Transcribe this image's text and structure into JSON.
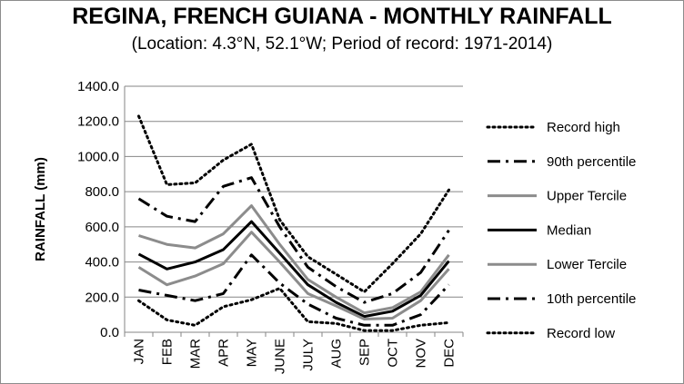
{
  "chart_data": {
    "type": "line",
    "title": "REGINA, FRENCH GUIANA - MONTHLY RAINFALL",
    "subtitle": "(Location: 4.3°N, 52.1°W; Period of record: 1971-2014)",
    "xlabel": "",
    "ylabel": "RAINFALL (mm)",
    "ylim": [
      0,
      1400
    ],
    "yticks": [
      "0.0",
      "200.0",
      "400.0",
      "600.0",
      "800.0",
      "1000.0",
      "1200.0",
      "1400.0"
    ],
    "categories": [
      "JAN",
      "FEB",
      "MAR",
      "APR",
      "MAY",
      "JUNE",
      "JULY",
      "AUG",
      "SEP",
      "OCT",
      "NOV",
      "DEC"
    ],
    "grid": "horizontal",
    "legend_position": "right",
    "series": [
      {
        "name": "Record high",
        "style": "dotted",
        "color": "#000000",
        "values": [
          1230,
          840,
          850,
          980,
          1070,
          640,
          430,
          330,
          230,
          390,
          560,
          810
        ]
      },
      {
        "name": "90th percentile",
        "style": "dashdot",
        "color": "#000000",
        "values": [
          760,
          660,
          630,
          830,
          880,
          600,
          370,
          260,
          170,
          220,
          340,
          580
        ]
      },
      {
        "name": "Upper Tercile",
        "style": "solid",
        "color": "#8c8c8c",
        "values": [
          550,
          500,
          480,
          560,
          720,
          500,
          300,
          200,
          110,
          140,
          230,
          440
        ]
      },
      {
        "name": "Median",
        "style": "solid",
        "color": "#000000",
        "values": [
          445,
          360,
          400,
          470,
          630,
          450,
          270,
          170,
          90,
          120,
          210,
          405
        ]
      },
      {
        "name": "Lower Tercile",
        "style": "solid",
        "color": "#8c8c8c",
        "values": [
          370,
          270,
          320,
          390,
          570,
          400,
          220,
          150,
          75,
          80,
          180,
          360
        ]
      },
      {
        "name": "10th percentile",
        "style": "dashdot",
        "color": "#000000",
        "values": [
          240,
          210,
          180,
          220,
          440,
          280,
          160,
          80,
          40,
          40,
          100,
          270
        ]
      },
      {
        "name": "Record low",
        "style": "dotted",
        "color": "#000000",
        "values": [
          180,
          70,
          40,
          145,
          185,
          250,
          60,
          50,
          10,
          10,
          40,
          55
        ]
      }
    ]
  }
}
